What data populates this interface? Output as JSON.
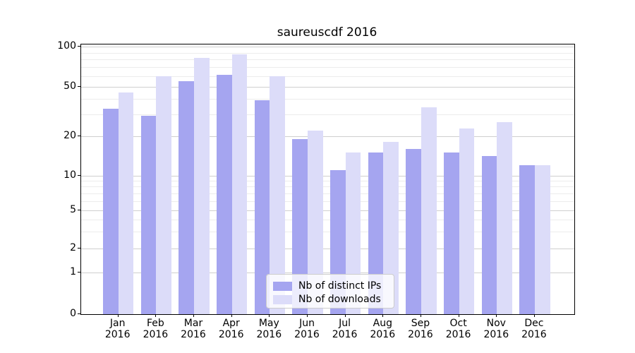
{
  "title": "saureuscdf 2016",
  "chart_data": {
    "type": "bar",
    "title": "saureuscdf 2016",
    "categories": [
      "Jan",
      "Feb",
      "Mar",
      "Apr",
      "May",
      "Jun",
      "Jul",
      "Aug",
      "Sep",
      "Oct",
      "Nov",
      "Dec"
    ],
    "category_year": "2016",
    "series": [
      {
        "name": "Nb of distinct IPs",
        "color": "#a5a5f0",
        "values": [
          33,
          29,
          55,
          61,
          39,
          19,
          11,
          15,
          16,
          15,
          14,
          12
        ]
      },
      {
        "name": "Nb of downloads",
        "color": "#dcdcf9",
        "values": [
          45,
          60,
          82,
          87,
          60,
          22,
          15,
          18,
          34,
          23,
          26,
          12
        ]
      }
    ],
    "xlabel": "",
    "ylabel": "",
    "yscale": "symlog",
    "yticks": [
      0,
      1,
      2,
      5,
      10,
      20,
      50,
      100
    ],
    "minor_gridlines": [
      3,
      4,
      6,
      7,
      8,
      9,
      30,
      40,
      60,
      70,
      80,
      90
    ],
    "ylim": [
      0,
      108
    ],
    "grid": true,
    "legend": {
      "position": "lower center",
      "entries": [
        "Nb of distinct IPs",
        "Nb of downloads"
      ]
    },
    "scale_anchors": [
      [
        0,
        1.0
      ],
      [
        1,
        0.8455
      ],
      [
        2,
        0.7565
      ],
      [
        5,
        0.6143
      ],
      [
        10,
        0.4856
      ],
      [
        20,
        0.3395
      ],
      [
        50,
        0.1563
      ],
      [
        100,
        0.0079
      ]
    ]
  },
  "colors": {
    "series_dark": "#a5a5f0",
    "series_light": "#dcdcf9",
    "grid_major": "#cfcfcf",
    "grid_minor": "#ececec",
    "axis": "#000000",
    "background": "#ffffff"
  }
}
